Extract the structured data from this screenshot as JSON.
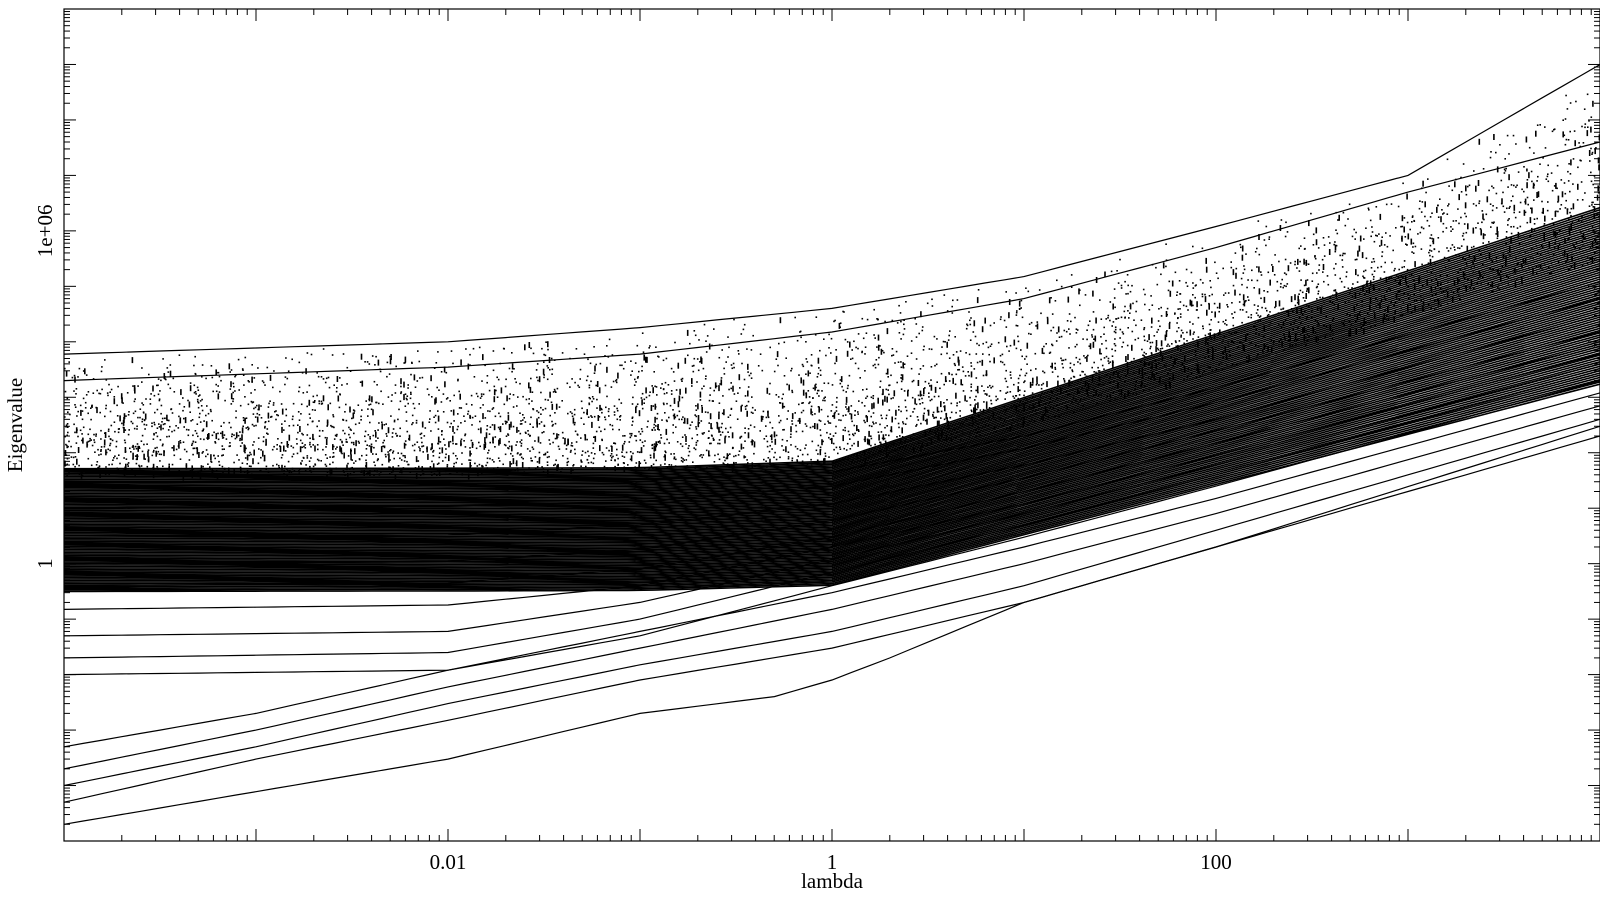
{
  "chart_data": {
    "type": "scatter",
    "title": "",
    "xlabel": "lambda",
    "ylabel": "Eigenvalue",
    "xscale": "log",
    "yscale": "log",
    "xlim": [
      0.0001,
      10000
    ],
    "ylim": [
      1e-05,
      10000000000.0
    ],
    "x_ticks": [
      {
        "value": 0.01,
        "label": "0.01"
      },
      {
        "value": 1,
        "label": "1"
      },
      {
        "value": 100,
        "label": "100"
      }
    ],
    "y_ticks": [
      {
        "value": 1,
        "label": "1"
      },
      {
        "value": 1000000,
        "label": "1e+06"
      }
    ],
    "grid": false,
    "legend": "none",
    "mark_color": "#000000",
    "series": [
      {
        "name": "",
        "style": "curve",
        "x": [
          0.0001,
          0.01,
          0.1,
          0.5,
          1,
          2,
          10,
          100,
          10000
        ],
        "y": [
          2e-05,
          0.0003,
          0.002,
          0.004,
          0.008,
          0.02,
          0.2,
          2,
          300
        ]
      },
      {
        "name": "",
        "style": "curve",
        "x": [
          0.0001,
          0.001,
          0.01,
          0.1,
          1,
          10,
          100,
          10000
        ],
        "y": [
          5e-05,
          0.0003,
          0.0015,
          0.008,
          0.03,
          0.2,
          2,
          200
        ]
      },
      {
        "name": "",
        "style": "curve",
        "x": [
          0.0001,
          0.001,
          0.01,
          0.1,
          1,
          10,
          100,
          10000
        ],
        "y": [
          0.0001,
          0.0005,
          0.003,
          0.015,
          0.06,
          0.4,
          4,
          400
        ]
      },
      {
        "name": "",
        "style": "curve",
        "x": [
          0.0001,
          0.001,
          0.01,
          0.1,
          1,
          10,
          100,
          10000
        ],
        "y": [
          0.0002,
          0.001,
          0.006,
          0.03,
          0.15,
          1,
          8,
          700
        ]
      },
      {
        "name": "",
        "style": "curve",
        "x": [
          0.0001,
          0.001,
          0.01,
          0.1,
          1,
          10,
          100,
          10000
        ],
        "y": [
          0.0005,
          0.002,
          0.012,
          0.06,
          0.3,
          2,
          15,
          1200
        ]
      },
      {
        "name": "",
        "style": "curve",
        "x": [
          0.0001,
          0.01,
          0.1,
          1,
          10,
          100,
          10000
        ],
        "y": [
          0.01,
          0.012,
          0.05,
          0.4,
          3,
          25,
          2000
        ]
      },
      {
        "name": "",
        "style": "curve",
        "x": [
          0.0001,
          0.01,
          0.1,
          1,
          10,
          100,
          10000
        ],
        "y": [
          0.02,
          0.025,
          0.1,
          0.7,
          5,
          40,
          3000
        ]
      },
      {
        "name": "",
        "style": "curve",
        "x": [
          0.0001,
          0.01,
          0.1,
          1,
          10,
          100,
          10000
        ],
        "y": [
          0.05,
          0.06,
          0.2,
          1.2,
          8,
          60,
          4000
        ]
      },
      {
        "name": "",
        "style": "curve",
        "x": [
          0.0001,
          0.01,
          0.1,
          1,
          10,
          100,
          10000
        ],
        "y": [
          0.15,
          0.18,
          0.4,
          2,
          12,
          90,
          6000
        ]
      },
      {
        "name": "",
        "style": "curve",
        "x": [
          0.0001,
          0.01,
          0.1,
          1,
          10,
          100,
          10000
        ],
        "y": [
          0.4,
          0.45,
          0.8,
          3,
          20,
          150,
          9000
        ]
      },
      {
        "name": "",
        "style": "curve",
        "x": [
          0.0001,
          0.01,
          0.1,
          1,
          10,
          100,
          10000
        ],
        "y": [
          1,
          1.1,
          1.8,
          6,
          35,
          250,
          15000
        ]
      },
      {
        "name": "",
        "style": "curve",
        "x": [
          0.0001,
          0.01,
          0.1,
          1,
          10,
          100,
          10000
        ],
        "y": [
          3,
          3.3,
          5,
          12,
          60,
          400,
          30000
        ]
      },
      {
        "name": "",
        "style": "curve",
        "x": [
          0.0001,
          0.01,
          0.1,
          1,
          10,
          100,
          10000
        ],
        "y": [
          10,
          11,
          13,
          25,
          120,
          800,
          60000
        ]
      },
      {
        "name": "",
        "style": "curve",
        "x": [
          0.0001,
          0.01,
          0.1,
          1,
          10,
          100,
          10000
        ],
        "y": [
          30,
          31,
          33,
          45,
          200,
          1500,
          120000
        ]
      },
      {
        "name": "",
        "style": "curve",
        "x": [
          0.0001,
          0.01,
          0.1,
          1,
          10,
          100,
          1000,
          10000
        ],
        "y": [
          2000,
          3500,
          6000,
          15000,
          60000,
          500000,
          5000000,
          40000000
        ]
      },
      {
        "name": "",
        "style": "curve",
        "x": [
          0.0001,
          0.01,
          0.1,
          1,
          10,
          100,
          1000,
          10000
        ],
        "y": [
          6000,
          10000,
          18000,
          40000,
          150000,
          1200000,
          10000000,
          1000000000.0
        ]
      }
    ],
    "scatter_band": {
      "description_x": [
        0.0001,
        0.01,
        0.1,
        1,
        10,
        100,
        1000,
        10000
      ],
      "upper_y": [
        6000,
        10000,
        18000,
        40000,
        150000,
        1200000,
        10000000,
        1000000000.0
      ],
      "lower_y": [
        40,
        40,
        50,
        60,
        300,
        3000,
        30000,
        300000
      ]
    }
  }
}
